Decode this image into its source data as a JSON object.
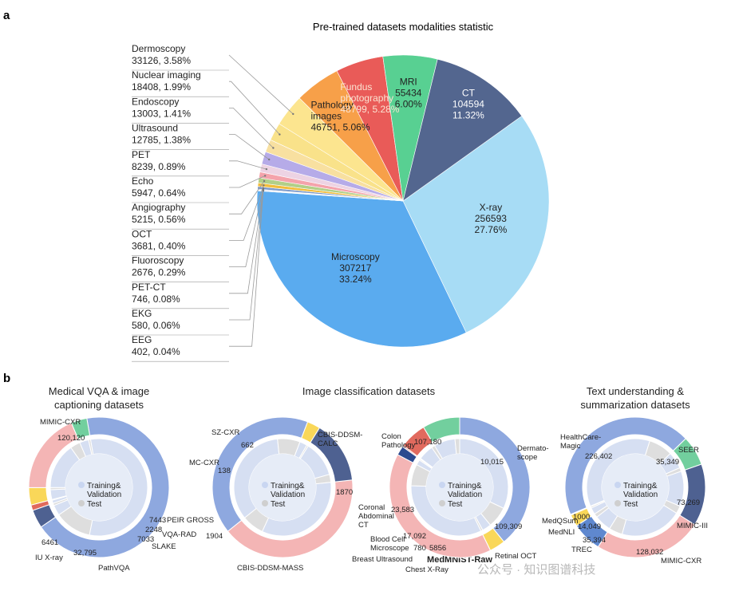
{
  "panel_a": {
    "letter": "a"
  },
  "panel_b": {
    "letter": "b"
  },
  "watermark": "公众号 · 知识图谱科技",
  "chart_data": [
    {
      "id": "pretrained",
      "type": "pie",
      "title": "Pre-trained datasets modalities statistic",
      "slices": [
        {
          "label": "X-ray",
          "count": "256593",
          "pct": "27.76%",
          "value": 256593,
          "color": "#a7dcf5",
          "text_color": "#222",
          "label_style": "inside"
        },
        {
          "label": "Microscopy",
          "count": "307217",
          "pct": "33.24%",
          "value": 307217,
          "color": "#5aabef",
          "text_color": "#222",
          "label_style": "inside"
        },
        {
          "label": "EEG",
          "count": "402",
          "pct": "0.04%",
          "value": 402,
          "color": "#1f3a78",
          "label_style": "outside"
        },
        {
          "label": "EKG",
          "count": "580",
          "pct": "0.06%",
          "value": 580,
          "color": "#385a9c",
          "label_style": "outside"
        },
        {
          "label": "PET-CT",
          "count": "746",
          "pct": "0.08%",
          "value": 746,
          "color": "#5b79b4",
          "label_style": "outside"
        },
        {
          "label": "Fluoroscopy",
          "count": "2676",
          "pct": "0.29%",
          "value": 2676,
          "color": "#7a98c9",
          "label_style": "outside"
        },
        {
          "label": "OCT",
          "count": "3681",
          "pct": "0.40%",
          "value": 3681,
          "color": "#f2bd3c",
          "label_style": "outside"
        },
        {
          "label": "Angiography",
          "count": "5215",
          "pct": "0.56%",
          "value": 5215,
          "color": "#b2cf88",
          "label_style": "outside"
        },
        {
          "label": "Echo",
          "count": "5947",
          "pct": "0.64%",
          "value": 5947,
          "color": "#f4a3ab",
          "label_style": "outside"
        },
        {
          "label": "PET",
          "count": "8239",
          "pct": "0.89%",
          "value": 8239,
          "color": "#edd3e3",
          "label_style": "outside"
        },
        {
          "label": "Ultrasound",
          "count": "12785",
          "pct": "1.38%",
          "value": 12785,
          "color": "#b6abe8",
          "label_style": "outside"
        },
        {
          "label": "Endoscopy",
          "count": "13003",
          "pct": "1.41%",
          "value": 13003,
          "color": "#f8e0a0",
          "label_style": "outside"
        },
        {
          "label": "Nuclear imaging",
          "count": "18408",
          "pct": "1.99%",
          "value": 18408,
          "color": "#f9e28a",
          "label_style": "outside"
        },
        {
          "label": "Dermoscopy",
          "count": "33126",
          "pct": "3.58%",
          "value": 33126,
          "color": "#fce58f",
          "label_style": "outside"
        },
        {
          "label": "Pathology images",
          "count": "46751",
          "pct": "5.06%",
          "value": 46751,
          "color": "#f7a049",
          "text_color": "#222",
          "label_style": "inside"
        },
        {
          "label": "Fundus photography",
          "count": "48799",
          "pct": "5.28%",
          "value": 48799,
          "color": "#e95b58",
          "text_color": "#fbe3d2",
          "label_style": "inside"
        },
        {
          "label": "MRI",
          "count": "55434",
          "pct": "6.00%",
          "value": 55434,
          "color": "#58d092",
          "text_color": "#222",
          "label_style": "inside"
        },
        {
          "label": "CT",
          "count": "104594",
          "pct": "11.32%",
          "value": 104594,
          "color": "#53668f",
          "text_color": "#ffffff",
          "label_style": "inside"
        }
      ]
    },
    {
      "id": "vqa",
      "type": "donut",
      "title": "Medical VQA & image captioning datasets",
      "center_legend": [
        "Training& Validation",
        "Test"
      ],
      "outer": [
        {
          "label": "MIMIC-CXR",
          "value": 120120,
          "value_label": "120,120",
          "color": "#8ea8df"
        },
        {
          "label": "PEIR GROSS",
          "value": 7443,
          "value_label": "7443",
          "color": "#4e6191"
        },
        {
          "label": "VQA-RAD",
          "value": 2248,
          "value_label": "2248",
          "color": "#e06a5c"
        },
        {
          "label": "SLAKE",
          "value": 7033,
          "value_label": "7033",
          "color": "#f9d759"
        },
        {
          "label": "PathVQA",
          "value": 32795,
          "value_label": "32,795",
          "color": "#f4b5b5"
        },
        {
          "label": "IU X-ray",
          "value": 6461,
          "value_label": "6461",
          "color": "#72cf9e"
        }
      ]
    },
    {
      "id": "classification",
      "type": "donut",
      "title": "Image classification datasets",
      "center_legend": [
        "Training& Validation",
        "Test"
      ],
      "outer": [
        {
          "label": "CBIS-DDSM-CALC",
          "value": 1870,
          "value_label": "1870",
          "color": "#f4b5b5"
        },
        {
          "label": "CBIS-DDSM-MASS",
          "value": 1904,
          "value_label": "1904",
          "color": "#8ea8df"
        },
        {
          "label": "MC-CXR",
          "value": 138,
          "value_label": "138",
          "color": "#f9d759"
        },
        {
          "label": "SZ-CXR",
          "value": 662,
          "value_label": "662",
          "color": "#4e6191"
        }
      ]
    },
    {
      "id": "medmnist",
      "type": "donut",
      "title": "MedMNIST-Raw",
      "center_legend": [
        "Training& Validation",
        "Test"
      ],
      "outer": [
        {
          "label": "Colon Pathology",
          "value": 107180,
          "value_label": "107,180",
          "color": "#8ea8df"
        },
        {
          "label": "Dermatoscope",
          "value": 10015,
          "value_label": "10,015",
          "color": "#f9d759"
        },
        {
          "label": "Retinal OCT",
          "value": 109309,
          "value_label": "109,309",
          "color": "#f4b5b5"
        },
        {
          "label": "Chest X-Ray",
          "value": 5856,
          "value_label": "5856",
          "color": "#2c4a8f"
        },
        {
          "label": "Breast Ultrasound",
          "value": 780,
          "value_label": "780",
          "color": "#d65b5b"
        },
        {
          "label": "Blood Cell Microscope",
          "value": 17092,
          "value_label": "17,092",
          "color": "#e16a5e"
        },
        {
          "label": "Coronal Abdominal CT",
          "value": 23583,
          "value_label": "23,583",
          "color": "#72cf9e"
        }
      ]
    },
    {
      "id": "text",
      "type": "donut",
      "title": "Text understanding & summarization datasets",
      "center_legend": [
        "Training& Validation",
        "Test"
      ],
      "outer": [
        {
          "label": "SEER",
          "value": 35349,
          "value_label": "35,349",
          "color": "#72cf9e"
        },
        {
          "label": "MIMIC-III",
          "value": 73269,
          "value_label": "73,269",
          "color": "#4e6191"
        },
        {
          "label": "MIMIC-CXR",
          "value": 128032,
          "value_label": "128,032",
          "color": "#f4b5b5"
        },
        {
          "label": "TREC",
          "value": 35394,
          "value_label": "35,394",
          "color": "#5f88cf"
        },
        {
          "label": "MedNLI",
          "value": 14049,
          "value_label": "14,049",
          "color": "#f9d759"
        },
        {
          "label": "MedQSum",
          "value": 1000,
          "value_label": "1000",
          "color": "#e06a5c"
        },
        {
          "label": "HealthCare-Magic",
          "value": 226402,
          "value_label": "226,402",
          "color": "#8ea8df"
        }
      ]
    }
  ]
}
